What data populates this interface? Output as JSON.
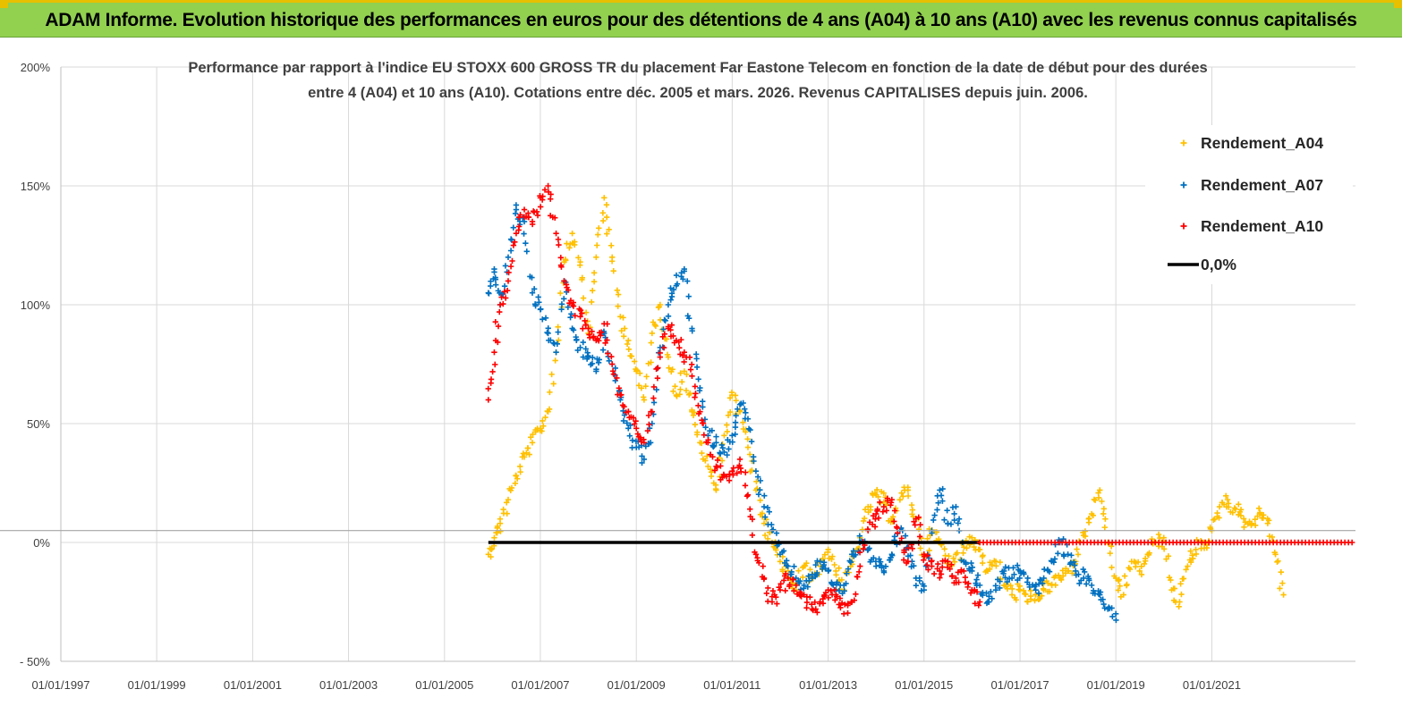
{
  "banner": {
    "title": "ADAM Informe. Evolution historique des performances en euros pour des détentions de 4 ans (A04) à 10 ans (A10) avec les revenus connus capitalisés"
  },
  "colors": {
    "banner": "#92d050",
    "A04": "#ffc000",
    "A07": "#0070c0",
    "A10": "#ff0000",
    "zero_line": "#000000",
    "grid": "#d9d9d9"
  },
  "chart_data": {
    "type": "scatter",
    "title_lines": [
      "Performance par rapport à l'indice EU STOXX 600 GROSS TR  du placement Far Eastone Telecom  en fonction de la date de début pour des durées",
      "entre 4 (A04) et 10 ans (A10).  Cotations entre déc. 2005 et mars. 2026. Revenus CAPITALISES depuis juin. 2006."
    ],
    "x_axis": {
      "type": "date",
      "range": [
        "1997-01-01",
        "2023-12-31"
      ],
      "tick_labels": [
        "01/01/1997",
        "01/01/1999",
        "01/01/2001",
        "01/01/2003",
        "01/01/2005",
        "01/01/2007",
        "01/01/2009",
        "01/01/2011",
        "01/01/2013",
        "01/01/2015",
        "01/01/2017",
        "01/01/2019",
        "01/01/2021"
      ],
      "gridlines": true
    },
    "y_axis": {
      "range": [
        -50,
        200
      ],
      "unit": "%",
      "tick_values": [
        -50,
        0,
        50,
        100,
        150,
        200
      ],
      "tick_labels": [
        "- 50%",
        "0%",
        "50%",
        "100%",
        "150%",
        "200%"
      ],
      "gridlines": true
    },
    "legend": {
      "position": "top-right",
      "entries": [
        "Rendement_A04",
        "Rendement_A07",
        "Rendement_A10",
        "0,0%"
      ]
    },
    "series": [
      {
        "name": "Rendement_A04",
        "marker": "+",
        "x": [
          "2005-12-01",
          "2006-01-15",
          "2006-03-01",
          "2006-05-01",
          "2006-07-01",
          "2006-09-01",
          "2006-11-01",
          "2007-01-01",
          "2007-03-01",
          "2007-05-01",
          "2007-07-01",
          "2007-09-01",
          "2007-11-01",
          "2008-01-01",
          "2008-03-01",
          "2008-05-01",
          "2008-07-01",
          "2008-09-01",
          "2008-11-01",
          "2009-01-01",
          "2009-03-01",
          "2009-05-01",
          "2009-07-01",
          "2009-09-01",
          "2009-11-01",
          "2010-01-01",
          "2010-03-01",
          "2010-05-01",
          "2010-07-01",
          "2010-09-01",
          "2010-11-01",
          "2011-01-01",
          "2011-03-01",
          "2011-05-01",
          "2011-07-01",
          "2011-09-01",
          "2011-11-01",
          "2012-01-01",
          "2012-03-01",
          "2012-05-01",
          "2012-07-01",
          "2012-09-01",
          "2012-11-01",
          "2013-01-01",
          "2013-03-01",
          "2013-05-01",
          "2013-07-01",
          "2013-09-01",
          "2013-11-01",
          "2014-01-01",
          "2014-03-01",
          "2014-05-01",
          "2014-07-01",
          "2014-09-01",
          "2014-11-01",
          "2015-01-01",
          "2015-03-01",
          "2015-05-01",
          "2015-07-01",
          "2015-09-01",
          "2015-11-01",
          "2016-01-01",
          "2016-03-01",
          "2016-05-01",
          "2016-07-01",
          "2016-09-01",
          "2016-11-01",
          "2017-01-01",
          "2017-03-01",
          "2017-05-01",
          "2017-07-01",
          "2017-09-01",
          "2017-11-01",
          "2018-01-01",
          "2018-03-01",
          "2018-05-01",
          "2018-07-01",
          "2018-09-01",
          "2018-11-01",
          "2019-01-01",
          "2019-03-01",
          "2019-05-01",
          "2019-07-01",
          "2019-09-01",
          "2019-11-01",
          "2020-01-01",
          "2020-03-01",
          "2020-05-01",
          "2020-07-01",
          "2020-09-01",
          "2020-11-01",
          "2021-01-01",
          "2021-03-01",
          "2021-05-01",
          "2021-07-01",
          "2021-09-01",
          "2021-11-01",
          "2022-01-01",
          "2022-03-01",
          "2022-05-01",
          "2022-07-01"
        ],
        "y": [
          -5,
          2,
          8,
          18,
          28,
          36,
          42,
          48,
          55,
          80,
          118,
          130,
          118,
          88,
          120,
          145,
          120,
          95,
          85,
          72,
          60,
          88,
          100,
          78,
          62,
          72,
          55,
          42,
          32,
          22,
          45,
          62,
          55,
          40,
          22,
          8,
          0,
          -8,
          -12,
          -20,
          -10,
          -15,
          -10,
          -3,
          -12,
          -20,
          -8,
          2,
          15,
          20,
          17,
          10,
          18,
          22,
          10,
          -5,
          5,
          0,
          -8,
          -5,
          -2,
          2,
          -3,
          -12,
          -8,
          -18,
          -22,
          -20,
          -25,
          -22,
          -20,
          -18,
          -15,
          -12,
          -8,
          3,
          12,
          22,
          0,
          -15,
          -22,
          -8,
          -12,
          -5,
          0,
          2,
          -20,
          -25,
          -10,
          -3,
          0,
          5,
          15,
          18,
          14,
          10,
          8,
          12,
          10,
          -5,
          -22
        ]
      },
      {
        "name": "Rendement_A07",
        "marker": "+",
        "x": [
          "2005-12-01",
          "2006-01-15",
          "2006-03-01",
          "2006-05-01",
          "2006-07-01",
          "2006-09-01",
          "2006-11-01",
          "2007-01-01",
          "2007-03-01",
          "2007-05-01",
          "2007-07-01",
          "2007-09-01",
          "2007-11-01",
          "2008-01-01",
          "2008-03-01",
          "2008-05-01",
          "2008-07-01",
          "2008-09-01",
          "2008-11-01",
          "2009-01-01",
          "2009-03-01",
          "2009-05-01",
          "2009-07-01",
          "2009-09-01",
          "2009-11-01",
          "2010-01-01",
          "2010-03-01",
          "2010-05-01",
          "2010-07-01",
          "2010-09-01",
          "2010-11-01",
          "2011-01-01",
          "2011-03-01",
          "2011-05-01",
          "2011-07-01",
          "2011-09-01",
          "2011-11-01",
          "2012-01-01",
          "2012-03-01",
          "2012-05-01",
          "2012-07-01",
          "2012-09-01",
          "2012-11-01",
          "2013-01-01",
          "2013-03-01",
          "2013-05-01",
          "2013-07-01",
          "2013-09-01",
          "2013-11-01",
          "2014-01-01",
          "2014-03-01",
          "2014-05-01",
          "2014-07-01",
          "2014-09-01",
          "2014-11-01",
          "2015-01-01",
          "2015-03-01",
          "2015-05-01",
          "2015-07-01",
          "2015-09-01",
          "2015-11-01",
          "2016-01-01",
          "2016-03-01",
          "2016-05-01",
          "2016-07-01",
          "2016-09-01",
          "2016-11-01",
          "2017-01-01",
          "2017-03-01",
          "2017-05-01",
          "2017-07-01",
          "2017-09-01",
          "2017-11-01",
          "2018-01-01",
          "2018-03-01",
          "2018-05-01",
          "2018-07-01",
          "2018-09-01",
          "2018-11-01",
          "2019-01-01"
        ],
        "y": [
          105,
          115,
          100,
          120,
          140,
          135,
          105,
          98,
          88,
          80,
          110,
          90,
          82,
          78,
          72,
          88,
          75,
          60,
          48,
          40,
          35,
          50,
          82,
          100,
          108,
          115,
          90,
          65,
          45,
          42,
          38,
          45,
          58,
          52,
          30,
          15,
          5,
          -5,
          -10,
          -15,
          -18,
          -15,
          -8,
          -12,
          -20,
          -18,
          -5,
          0,
          -3,
          -10,
          -12,
          -5,
          5,
          -2,
          -15,
          -20,
          5,
          22,
          8,
          15,
          -8,
          -12,
          -18,
          -25,
          -20,
          -12,
          -15,
          -12,
          -15,
          -20,
          -15,
          -8,
          0,
          -5,
          -12,
          -15,
          -18,
          -22,
          -28,
          -30
        ]
      },
      {
        "name": "Rendement_A10",
        "marker": "+",
        "x": [
          "2005-12-01",
          "2006-01-15",
          "2006-03-01",
          "2006-05-01",
          "2006-07-01",
          "2006-09-01",
          "2006-11-01",
          "2007-01-01",
          "2007-03-01",
          "2007-05-01",
          "2007-07-01",
          "2007-09-01",
          "2007-11-01",
          "2008-01-01",
          "2008-03-01",
          "2008-05-01",
          "2008-07-01",
          "2008-09-01",
          "2008-11-01",
          "2009-01-01",
          "2009-03-01",
          "2009-05-01",
          "2009-07-01",
          "2009-09-01",
          "2009-11-01",
          "2010-01-01",
          "2010-03-01",
          "2010-05-01",
          "2010-07-01",
          "2010-09-01",
          "2010-11-01",
          "2011-01-01",
          "2011-03-01",
          "2011-05-01",
          "2011-07-01",
          "2011-09-01",
          "2011-11-01",
          "2012-01-01",
          "2012-03-01",
          "2012-05-01",
          "2012-07-01",
          "2012-09-01",
          "2012-11-01",
          "2013-01-01",
          "2013-03-01",
          "2013-05-01",
          "2013-07-01",
          "2013-09-01",
          "2013-11-01",
          "2014-01-01",
          "2014-03-01",
          "2014-05-01",
          "2014-07-01",
          "2014-09-01",
          "2014-11-01",
          "2015-01-01",
          "2015-03-01",
          "2015-05-01",
          "2015-07-01",
          "2015-09-01",
          "2015-11-01",
          "2016-01-01",
          "2016-03-01"
        ],
        "y": [
          60,
          80,
          100,
          110,
          130,
          140,
          135,
          145,
          150,
          130,
          110,
          100,
          95,
          90,
          85,
          92,
          75,
          62,
          55,
          48,
          42,
          55,
          78,
          90,
          85,
          80,
          70,
          55,
          42,
          32,
          28,
          30,
          35,
          20,
          -5,
          -15,
          -25,
          -20,
          -15,
          -18,
          -22,
          -28,
          -25,
          -20,
          -22,
          -30,
          -25,
          -10,
          5,
          12,
          15,
          18,
          0,
          -8,
          10,
          -5,
          -10,
          -12,
          -8,
          -15,
          -12,
          -20,
          -25
        ]
      },
      {
        "name": "0,0%",
        "type": "line",
        "x": [
          "2005-12-01",
          "2016-03-01"
        ],
        "y": [
          0,
          0
        ]
      }
    ]
  }
}
